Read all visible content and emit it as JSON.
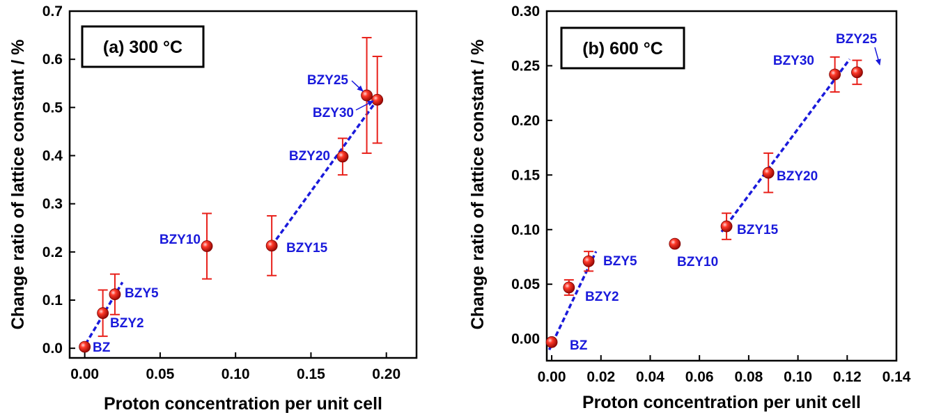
{
  "chart_data": [
    {
      "type": "scatter",
      "panel_label": "(a) 300 °C",
      "xlabel": "Proton concentration per unit cell",
      "ylabel": "Change ratio of lattice constant / %",
      "xlim": [
        -0.01,
        0.22
      ],
      "ylim": [
        -0.02,
        0.7
      ],
      "xticks": [
        "0.00",
        "0.05",
        "0.10",
        "0.15",
        "0.20"
      ],
      "yticks": [
        "0.0",
        "0.1",
        "0.2",
        "0.3",
        "0.4",
        "0.5",
        "0.6",
        "0.7"
      ],
      "points": [
        {
          "label": "BZ",
          "x": 0.0,
          "y": 0.003,
          "err": 0.0
        },
        {
          "label": "BZY2",
          "x": 0.012,
          "y": 0.073,
          "err": 0.048
        },
        {
          "label": "BZY5",
          "x": 0.02,
          "y": 0.112,
          "err": 0.042
        },
        {
          "label": "BZY10",
          "x": 0.081,
          "y": 0.212,
          "err": 0.068
        },
        {
          "label": "BZY15",
          "x": 0.124,
          "y": 0.213,
          "err": 0.062
        },
        {
          "label": "BZY20",
          "x": 0.171,
          "y": 0.398,
          "err": 0.038
        },
        {
          "label": "BZY25",
          "x": 0.187,
          "y": 0.525,
          "err": 0.12
        },
        {
          "label": "BZY30",
          "x": 0.194,
          "y": 0.516,
          "err": 0.09
        }
      ],
      "fit_lines": [
        {
          "x": [
            -0.002,
            0.025
          ],
          "y": [
            -0.005,
            0.137
          ]
        },
        {
          "x": [
            0.124,
            0.194
          ],
          "y": [
            0.213,
            0.516
          ]
        }
      ],
      "grid": false,
      "marker_color": "#e8201a",
      "line_color": "#1a1adb"
    },
    {
      "type": "scatter",
      "panel_label": "(b) 600 °C",
      "xlabel": "Proton concentration per unit cell",
      "ylabel": "Change ratio of lattice constant / %",
      "xlim": [
        -0.002,
        0.14
      ],
      "ylim": [
        -0.02,
        0.3
      ],
      "xticks": [
        "0.00",
        "0.02",
        "0.04",
        "0.06",
        "0.08",
        "0.10",
        "0.12",
        "0.14"
      ],
      "yticks": [
        "0.00",
        "0.05",
        "0.10",
        "0.15",
        "0.20",
        "0.25",
        "0.30"
      ],
      "points": [
        {
          "label": "BZ",
          "x": 0.0,
          "y": -0.003,
          "err": 0.0
        },
        {
          "label": "BZY2",
          "x": 0.007,
          "y": 0.047,
          "err": 0.007
        },
        {
          "label": "BZY5",
          "x": 0.015,
          "y": 0.071,
          "err": 0.009
        },
        {
          "label": "BZY10",
          "x": 0.05,
          "y": 0.087,
          "err": 0.0
        },
        {
          "label": "BZY15",
          "x": 0.071,
          "y": 0.103,
          "err": 0.012
        },
        {
          "label": "BZY20",
          "x": 0.088,
          "y": 0.152,
          "err": 0.018
        },
        {
          "label": "BZY30",
          "x": 0.115,
          "y": 0.242,
          "err": 0.016
        },
        {
          "label": "BZY25",
          "x": 0.124,
          "y": 0.244,
          "err": 0.011
        }
      ],
      "fit_lines": [
        {
          "x": [
            -0.001,
            0.018
          ],
          "y": [
            -0.01,
            0.08
          ]
        },
        {
          "x": [
            0.069,
            0.121
          ],
          "y": [
            0.098,
            0.256
          ]
        }
      ],
      "grid": false,
      "marker_color": "#e8201a",
      "line_color": "#1a1adb"
    }
  ]
}
